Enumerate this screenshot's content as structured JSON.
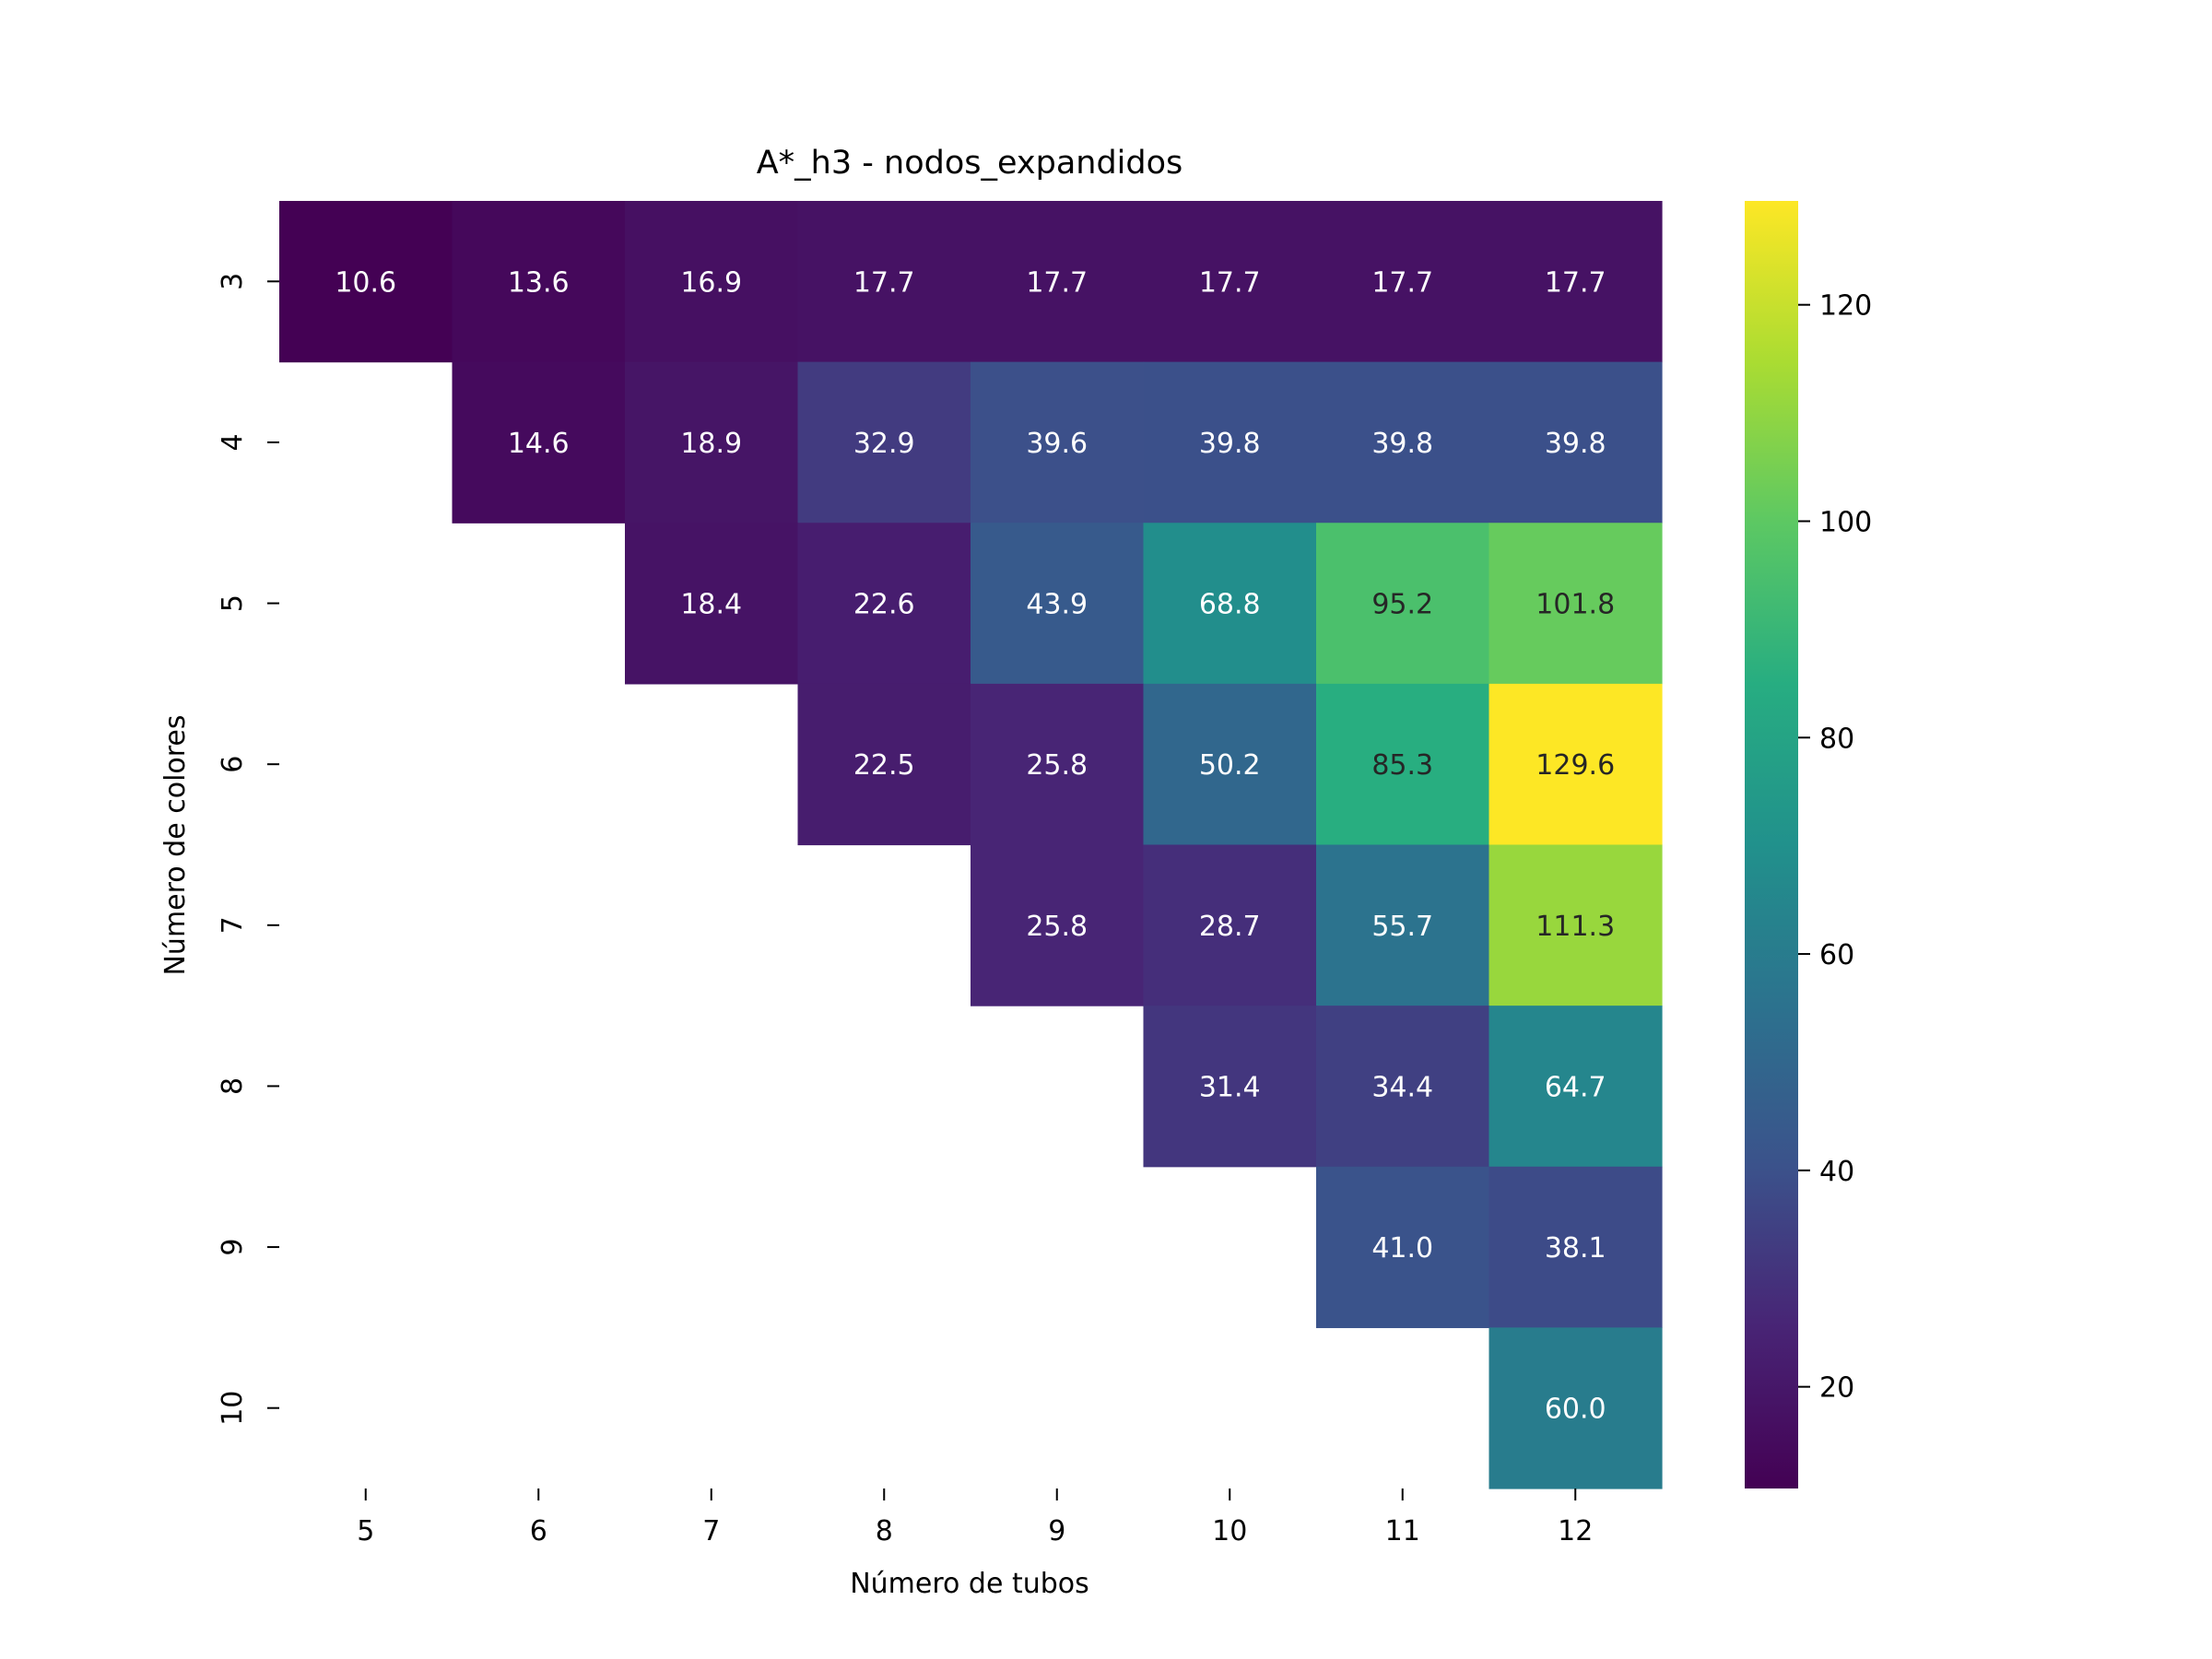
{
  "chart_data": {
    "type": "heatmap",
    "title": "A*_h3 - nodos_expandidos",
    "xlabel": "Número de tubos",
    "ylabel": "Número de colores",
    "x_categories": [
      "5",
      "6",
      "7",
      "8",
      "9",
      "10",
      "11",
      "12"
    ],
    "y_categories": [
      "3",
      "4",
      "5",
      "6",
      "7",
      "8",
      "9",
      "10"
    ],
    "values": [
      [
        10.6,
        13.6,
        16.9,
        17.7,
        17.7,
        17.7,
        17.7,
        17.7
      ],
      [
        null,
        14.6,
        18.9,
        32.9,
        39.6,
        39.8,
        39.8,
        39.8
      ],
      [
        null,
        null,
        18.4,
        22.6,
        43.9,
        68.8,
        95.2,
        101.8
      ],
      [
        null,
        null,
        null,
        22.5,
        25.8,
        50.2,
        85.3,
        129.6
      ],
      [
        null,
        null,
        null,
        null,
        25.8,
        28.7,
        55.7,
        111.3
      ],
      [
        null,
        null,
        null,
        null,
        null,
        31.4,
        34.4,
        64.7
      ],
      [
        null,
        null,
        null,
        null,
        null,
        null,
        41.0,
        38.1
      ],
      [
        null,
        null,
        null,
        null,
        null,
        null,
        null,
        60.0
      ]
    ],
    "colorbar": {
      "colormap": "viridis",
      "vmin": 10.6,
      "vmax": 129.6,
      "ticks": [
        20,
        40,
        60,
        80,
        100,
        120
      ]
    },
    "grid": false,
    "legend": "none"
  }
}
